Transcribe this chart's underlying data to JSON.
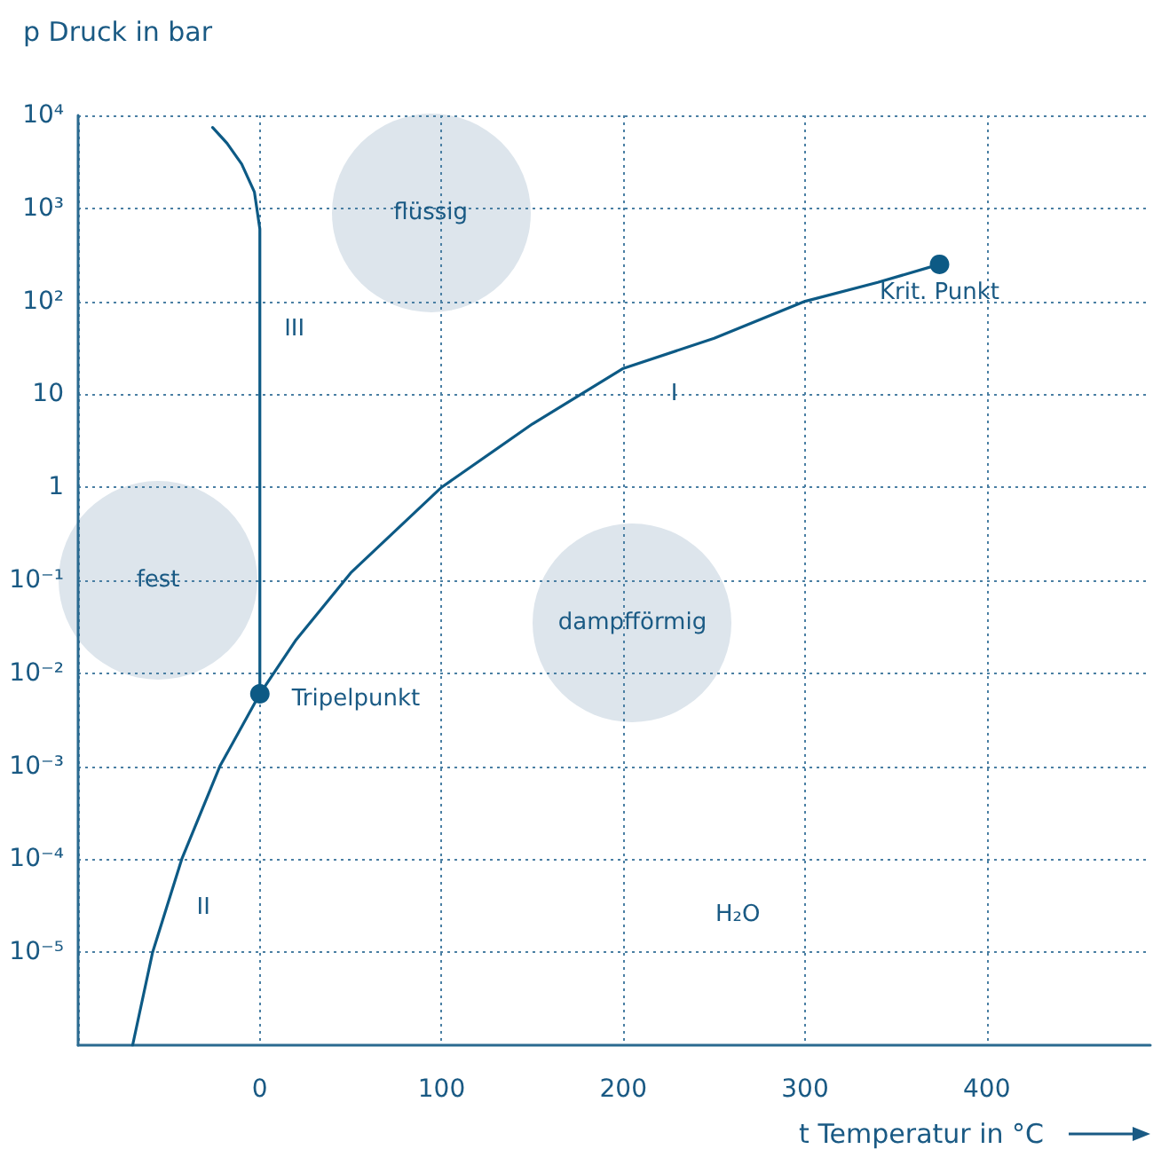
{
  "chart_data": {
    "type": "line",
    "xlabel": "t Temperatur in °C",
    "xlim": [
      -100,
      490
    ],
    "ylim": [
      1e-06,
      10000
    ],
    "log": "y",
    "grid": true,
    "xticks": [
      {
        "value": -100,
        "label": null
      },
      0,
      100,
      200,
      300,
      400
    ],
    "yticks": [
      {
        "value": 1e-05,
        "label": "10⁻⁵"
      },
      {
        "value": 0.0001,
        "label": "10⁻⁴"
      },
      {
        "value": 0.001,
        "label": "10⁻³"
      },
      {
        "value": 0.01,
        "label": "10⁻²"
      },
      {
        "value": 0.1,
        "label": "10⁻¹"
      },
      1,
      10,
      {
        "value": 100,
        "label": "10²"
      },
      {
        "value": 1000,
        "label": "10³"
      },
      {
        "value": 10000,
        "label": "10⁴"
      }
    ],
    "series": [
      {
        "color": "#0d5a85",
        "marker": "none",
        "line_style": "solid",
        "x": [
          -70,
          -59,
          -43,
          -22,
          0.01
        ],
        "values": [
          1e-06,
          1e-05,
          0.0001,
          0.001,
          0.006
        ]
      },
      {
        "color": "#0d5a85",
        "marker": "none",
        "line_style": "solid",
        "x": [
          0.01,
          20,
          50,
          100,
          150,
          200,
          250,
          300,
          340,
          374
        ],
        "values": [
          0.006,
          0.023,
          0.12,
          1,
          4.8,
          19,
          40,
          100,
          160,
          250
        ]
      },
      {
        "color": "#0d5a85",
        "marker": "none",
        "line_style": "solid",
        "x": [
          0.01,
          0,
          -3,
          -10,
          -18,
          -26
        ],
        "values": [
          0.006,
          600,
          1500,
          3000,
          5000,
          7400
        ]
      },
      {
        "type": "scatter",
        "color": "#0d5a85",
        "marker": "circle",
        "x": [
          0.01,
          374
        ],
        "values": [
          0.006,
          250
        ]
      }
    ],
    "annotations": [
      {
        "text": "Tripelpunkt",
        "x": 0.01,
        "y": 0.006
      },
      {
        "text": "Krit. Punkt",
        "x": 374,
        "y": 250
      },
      "I",
      "II",
      "III",
      "flüssig",
      "fest",
      "dampfförmig",
      "H₂O",
      "p Druck in bar"
    ]
  }
}
